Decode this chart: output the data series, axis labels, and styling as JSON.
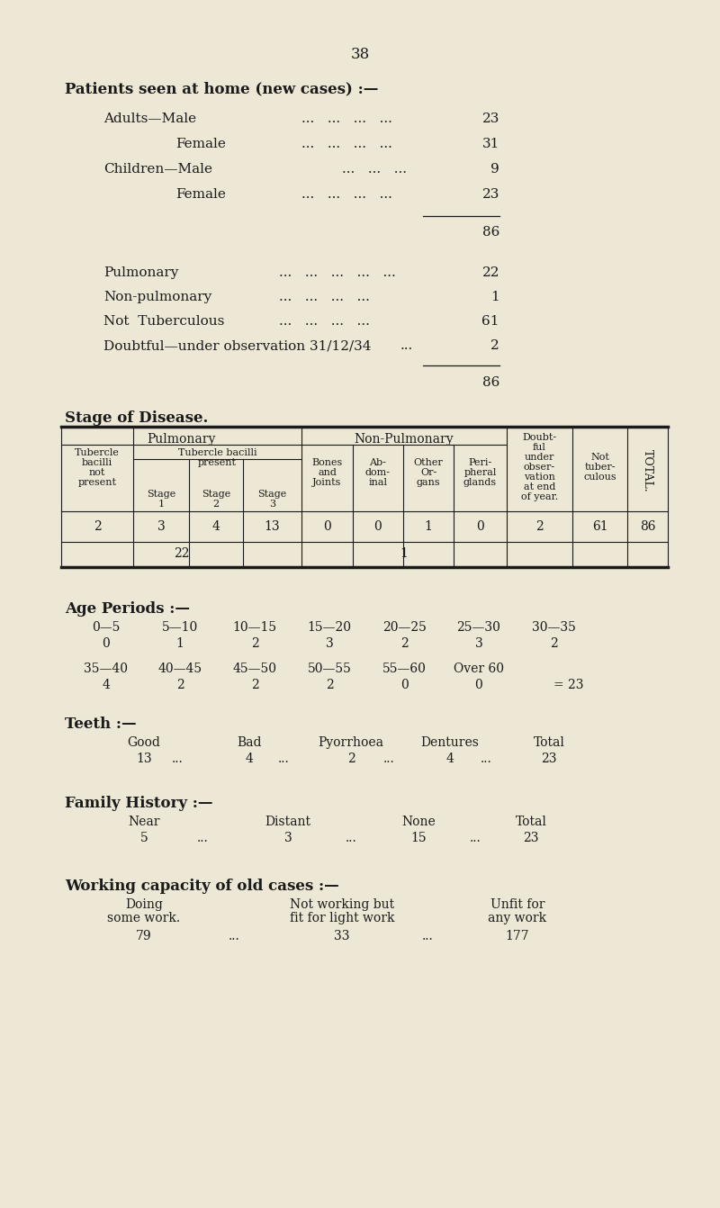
{
  "bg_color": "#ede8d5",
  "text_color": "#1a1a1a",
  "page_number": "38",
  "adults_male": "23",
  "adults_female": "31",
  "children_male": "9",
  "children_female": "23",
  "total1": "86",
  "pulmonary_val": "22",
  "nonpulmonary_val": "1",
  "not_tuberculous_val": "61",
  "doubtful_val": "2",
  "total2": "86",
  "stage_title": "Stage of Disease.",
  "table_data_row1": [
    "2",
    "3",
    "4",
    "13",
    "0",
    "0",
    "1",
    "0",
    "2",
    "61",
    "86"
  ],
  "table_data_row2_pulm": "22",
  "table_data_row2_nonpulm": "1",
  "age_title": "Age Periods :—",
  "age_periods_row1": [
    "0—5",
    "5—10",
    "10—15",
    "15—20",
    "20—25",
    "25—30",
    "30—35"
  ],
  "age_values_row1": [
    "0",
    "1",
    "2",
    "3",
    "2",
    "3",
    "2"
  ],
  "age_periods_row2": [
    "35—40",
    "40—45",
    "45—50",
    "50—55",
    "55—60",
    "Over 60"
  ],
  "age_values_row2": [
    "4",
    "2",
    "2",
    "2",
    "0",
    "0"
  ],
  "age_total": "= 23",
  "teeth_title": "Teeth :—",
  "teeth_headers": [
    "Good",
    "Bad",
    "Pyorrhoea",
    "Dentures",
    "Total"
  ],
  "teeth_values": [
    "13",
    "4",
    "2",
    "4",
    "23"
  ],
  "family_title": "Family History :—",
  "family_headers": [
    "Near",
    "Distant",
    "None",
    "Total"
  ],
  "family_values": [
    "5",
    "3",
    "15",
    "23"
  ],
  "working_title": "Working capacity of old cases :—",
  "working_headers_line1": [
    "Doing",
    "Not working but",
    "Unfit for"
  ],
  "working_headers_line2": [
    "some work.",
    "fit for light work",
    "any work"
  ],
  "working_values": [
    "79",
    "33",
    "177"
  ]
}
